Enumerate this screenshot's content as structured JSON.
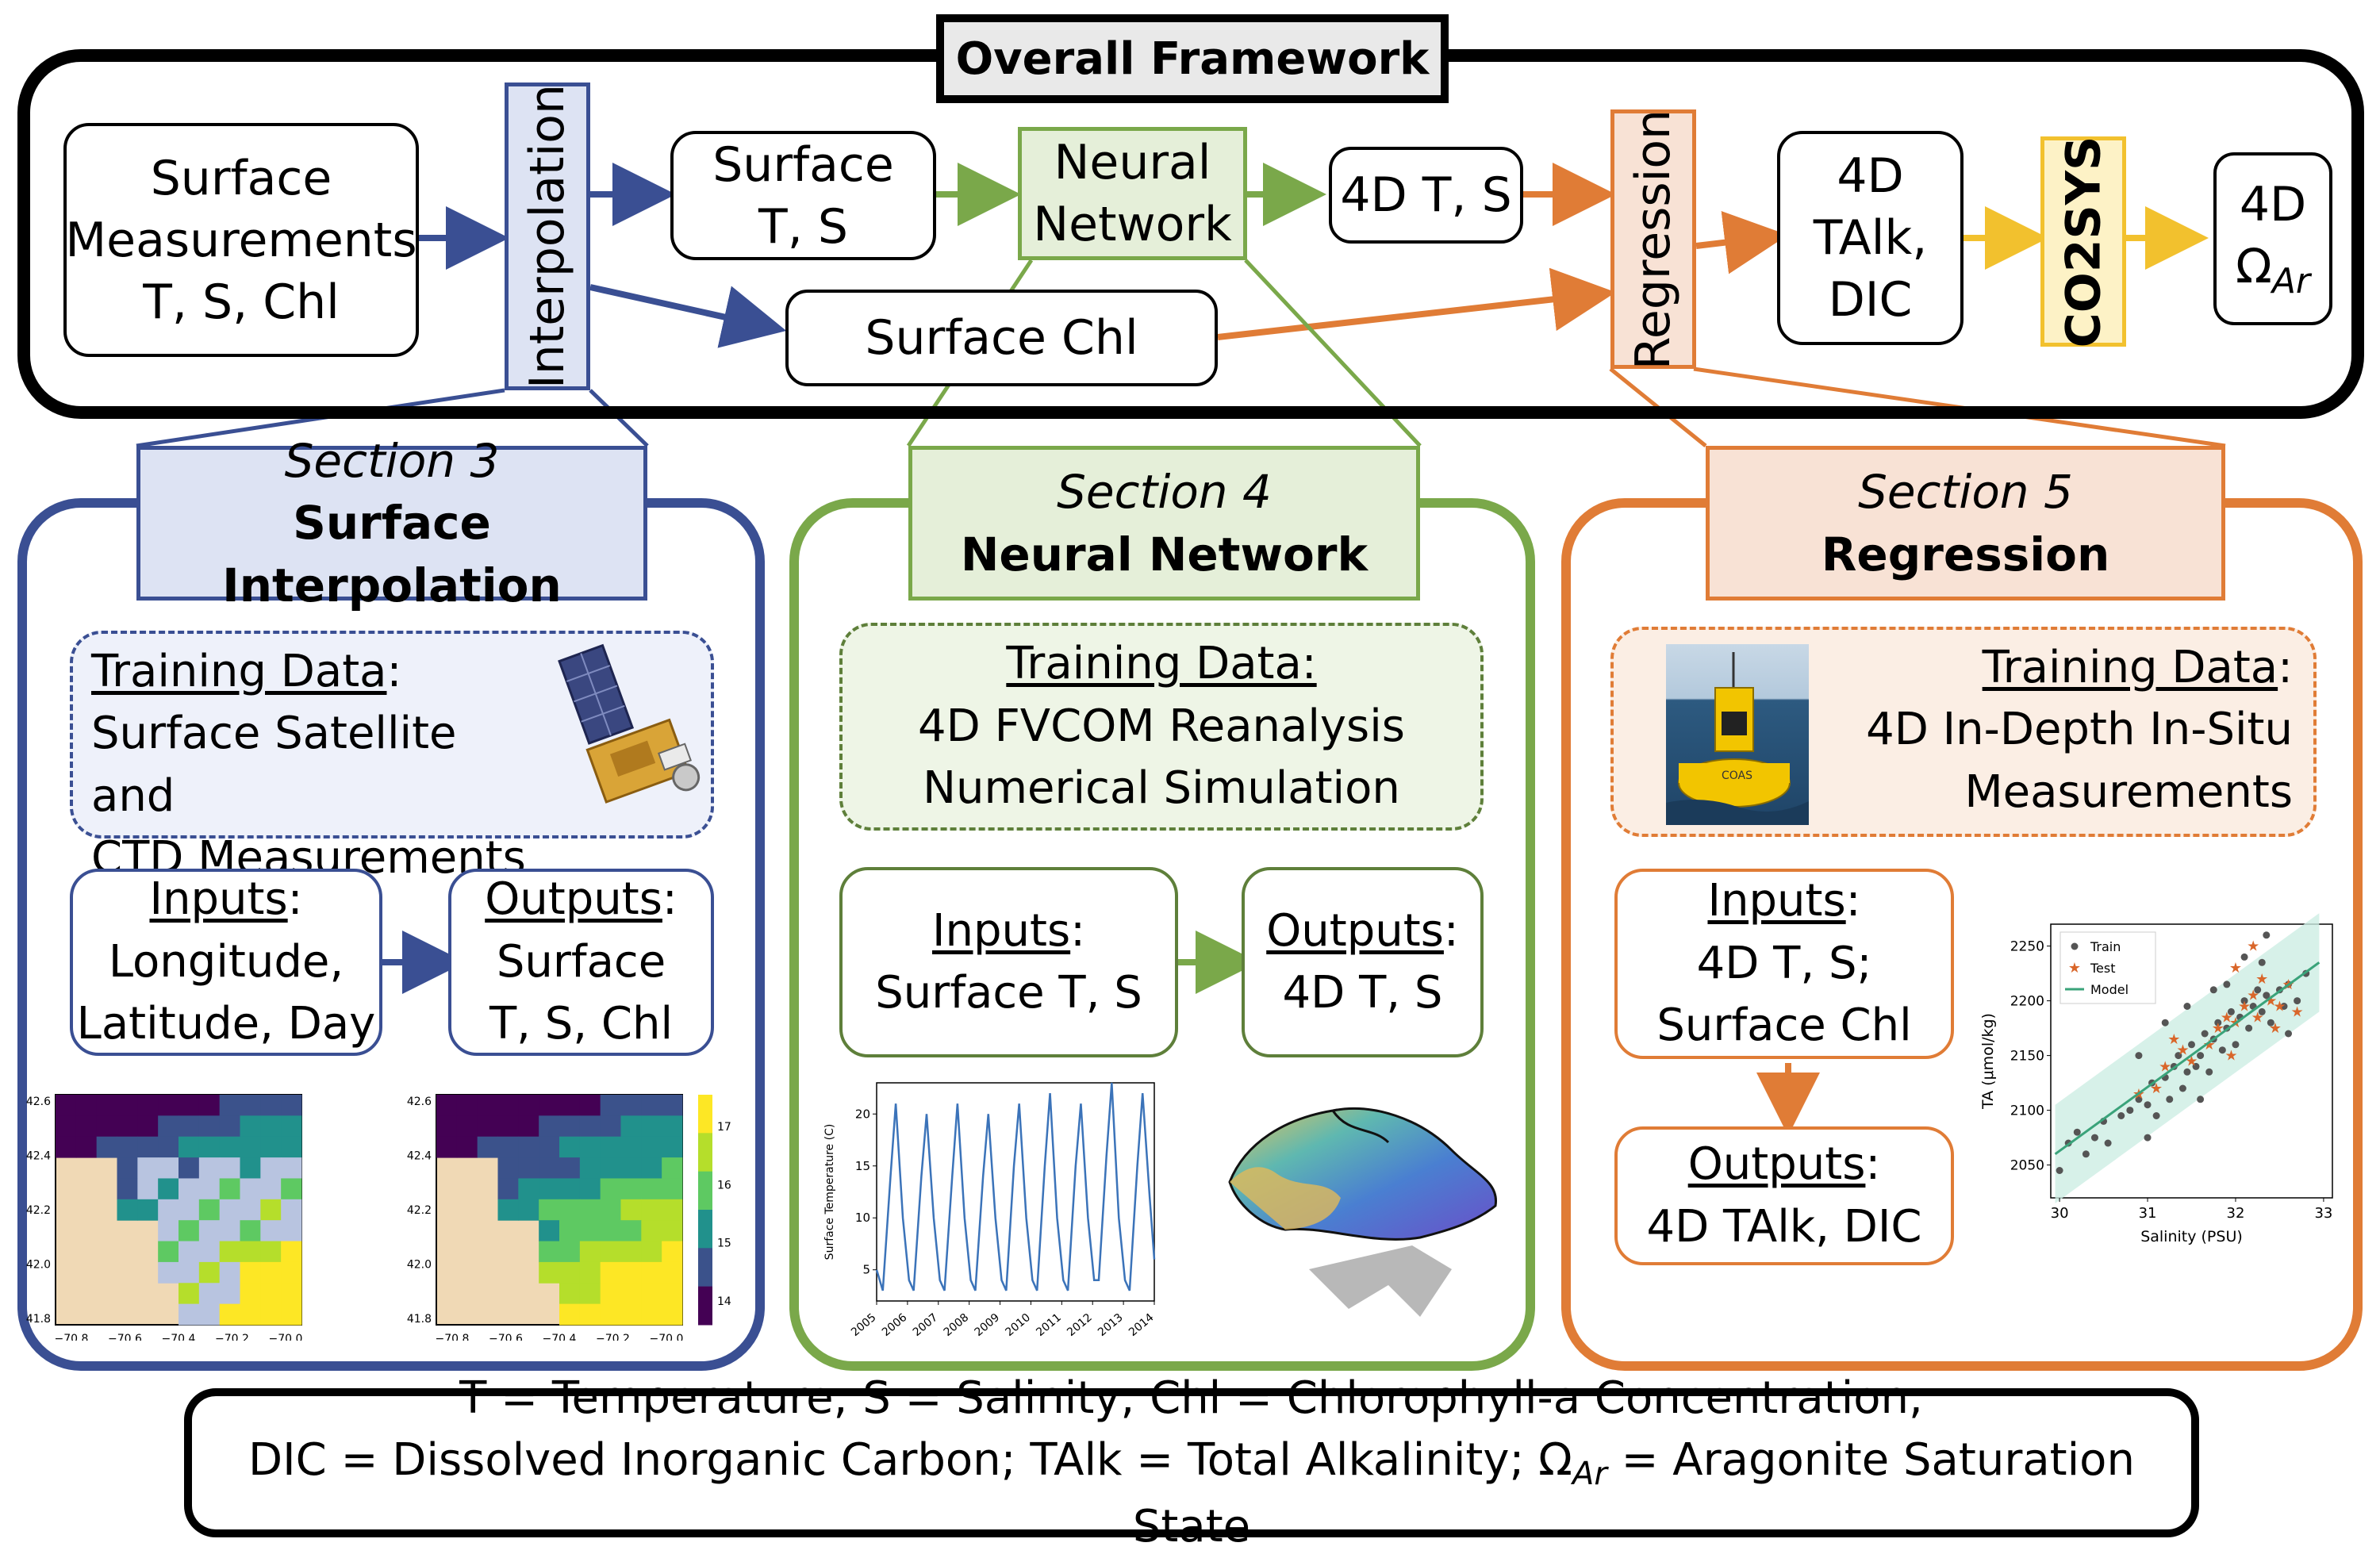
{
  "colors": {
    "black": "#000000",
    "blue": "#3a4f93",
    "blue_fill": "#dde3f3",
    "green": "#7aa84a",
    "green_fill": "#e5efd9",
    "orange": "#e07c36",
    "orange_fill": "#f8e2d5",
    "yellow": "#f2c12e",
    "yellow_fill": "#fdf2c6"
  },
  "overall": {
    "title": "Overall Framework",
    "surface_measurements": [
      "Surface",
      "Measurements",
      "T, S, Chl"
    ],
    "interpolation": "Interpolation",
    "surface_ts": [
      "Surface",
      "T, S"
    ],
    "surface_chl": "Surface Chl",
    "neural_network": [
      "Neural",
      "Network"
    ],
    "ts_4d": "4D T, S",
    "regression": "Regression",
    "talk_dic": [
      "4D",
      "TAlk,",
      "DIC"
    ],
    "co2sys": "CO2SYS",
    "omega": [
      "4D",
      "Ω",
      "Ar"
    ]
  },
  "section3": {
    "section": "Section 3",
    "title": "Surface Interpolation",
    "training_label": "Training Data",
    "training_colon": ":",
    "training_lines": [
      "Surface Satellite and",
      "CTD Measurements"
    ],
    "inputs_label": "Inputs",
    "inputs_lines": [
      "Longitude,",
      "Latitude, Day"
    ],
    "outputs_label": "Outputs",
    "outputs_lines": [
      "Surface",
      "T, S, Chl"
    ],
    "map": {
      "y_ticks": [
        "42.6",
        "42.4",
        "42.2",
        "42.0",
        "41.8"
      ],
      "x_ticks": [
        "−70.8",
        "−70.6",
        "−70.4",
        "−70.2",
        "−70.0"
      ],
      "colorbar_ticks": [
        "17",
        "16",
        "15",
        "14"
      ]
    }
  },
  "section4": {
    "section": "Section 4",
    "title": "Neural Network",
    "training_label": "Training Data:",
    "training_lines": [
      "4D FVCOM Reanalysis",
      "Numerical Simulation"
    ],
    "inputs_label": "Inputs",
    "inputs_colon": ":",
    "inputs_lines": [
      "Surface T, S"
    ],
    "outputs_label": "Outputs",
    "outputs_colon": ":",
    "outputs_lines": [
      "4D T, S"
    ]
  },
  "section5": {
    "section": "Section 5",
    "title": "Regression",
    "training_label": "Training Data",
    "training_colon": ":",
    "training_lines": [
      "4D In-Depth In-Situ",
      "Measurements"
    ],
    "inputs_label": "Inputs",
    "inputs_lines": [
      "4D T, S;",
      "Surface Chl"
    ],
    "outputs_label": "Outputs",
    "outputs_lines": [
      "4D TAlk, DIC"
    ]
  },
  "buoy_label": "COAS",
  "legend": {
    "line1": "T = Temperature; S = Salinity; Chl = Chlorophyll-a Concentration;",
    "line2_pre": "DIC = Dissolved Inorganic Carbon; TAlk = Total Alkalinity; ",
    "omega": "Ω",
    "omega_sub": "Ar",
    "line2_post": " = Aragonite Saturation State"
  },
  "chart_data": [
    {
      "type": "line",
      "title": "",
      "xlabel": "",
      "ylabel": "Surface Temperature (C)",
      "x_ticks": [
        "2005",
        "2006",
        "2007",
        "2008",
        "2009",
        "2010",
        "2011",
        "2012",
        "2013",
        "2014"
      ],
      "y_ticks": [
        5,
        10,
        15,
        20
      ],
      "xlim": [
        2005,
        2014
      ],
      "ylim": [
        2,
        23
      ],
      "series": [
        {
          "values": [
            [
              2005.0,
              5
            ],
            [
              2005.2,
              3
            ],
            [
              2005.45,
              14
            ],
            [
              2005.62,
              21
            ],
            [
              2005.85,
              10
            ],
            [
              2006.05,
              4
            ],
            [
              2006.2,
              3
            ],
            [
              2006.45,
              14
            ],
            [
              2006.62,
              20
            ],
            [
              2006.85,
              10
            ],
            [
              2007.05,
              4
            ],
            [
              2007.2,
              3
            ],
            [
              2007.45,
              14
            ],
            [
              2007.62,
              21
            ],
            [
              2007.85,
              10
            ],
            [
              2008.05,
              4
            ],
            [
              2008.2,
              3
            ],
            [
              2008.45,
              14
            ],
            [
              2008.62,
              20
            ],
            [
              2008.85,
              10
            ],
            [
              2009.05,
              4
            ],
            [
              2009.2,
              3
            ],
            [
              2009.45,
              15
            ],
            [
              2009.62,
              21
            ],
            [
              2009.85,
              10
            ],
            [
              2010.05,
              4
            ],
            [
              2010.2,
              3
            ],
            [
              2010.45,
              15
            ],
            [
              2010.62,
              22
            ],
            [
              2010.85,
              10
            ],
            [
              2011.05,
              4
            ],
            [
              2011.2,
              3
            ],
            [
              2011.45,
              15
            ],
            [
              2011.62,
              21
            ],
            [
              2011.85,
              10
            ],
            [
              2012.05,
              4
            ],
            [
              2012.2,
              4
            ],
            [
              2012.45,
              16
            ],
            [
              2012.62,
              23
            ],
            [
              2012.85,
              10
            ],
            [
              2013.05,
              4
            ],
            [
              2013.2,
              3
            ],
            [
              2013.45,
              15
            ],
            [
              2013.62,
              22
            ],
            [
              2013.85,
              12
            ],
            [
              2014.0,
              6
            ]
          ]
        }
      ]
    },
    {
      "type": "scatter",
      "title": "",
      "xlabel": "Salinity (PSU)",
      "ylabel": "TA (μmol/kg)",
      "x_ticks": [
        30,
        31,
        32,
        33
      ],
      "y_ticks": [
        2050,
        2100,
        2150,
        2200,
        2250
      ],
      "xlim": [
        29.9,
        33.1
      ],
      "ylim": [
        2020,
        2270
      ],
      "legend": "top-left",
      "model": {
        "name": "Model",
        "x": [
          29.95,
          32.95
        ],
        "y": [
          2060,
          2235
        ],
        "band": 45
      },
      "series": [
        {
          "name": "Train",
          "points": [
            [
              30.0,
              2045
            ],
            [
              30.1,
              2070
            ],
            [
              30.2,
              2080
            ],
            [
              30.3,
              2060
            ],
            [
              30.4,
              2075
            ],
            [
              30.5,
              2090
            ],
            [
              30.55,
              2070
            ],
            [
              30.7,
              2095
            ],
            [
              30.8,
              2100
            ],
            [
              30.9,
              2110
            ],
            [
              31.0,
              2105
            ],
            [
              31.05,
              2125
            ],
            [
              31.1,
              2095
            ],
            [
              31.2,
              2130
            ],
            [
              31.25,
              2110
            ],
            [
              31.3,
              2140
            ],
            [
              31.35,
              2150
            ],
            [
              31.4,
              2120
            ],
            [
              31.45,
              2135
            ],
            [
              31.5,
              2160
            ],
            [
              31.55,
              2140
            ],
            [
              31.6,
              2150
            ],
            [
              31.65,
              2170
            ],
            [
              31.7,
              2135
            ],
            [
              31.75,
              2165
            ],
            [
              31.8,
              2180
            ],
            [
              31.85,
              2155
            ],
            [
              31.9,
              2175
            ],
            [
              31.95,
              2190
            ],
            [
              32.0,
              2160
            ],
            [
              32.05,
              2185
            ],
            [
              32.1,
              2200
            ],
            [
              32.15,
              2175
            ],
            [
              32.2,
              2195
            ],
            [
              32.25,
              2210
            ],
            [
              32.3,
              2190
            ],
            [
              32.35,
              2205
            ],
            [
              32.4,
              2180
            ],
            [
              32.5,
              2210
            ],
            [
              32.55,
              2195
            ],
            [
              32.6,
              2215
            ],
            [
              32.7,
              2200
            ],
            [
              32.8,
              2225
            ],
            [
              32.35,
              2260
            ],
            [
              31.2,
              2180
            ],
            [
              31.0,
              2075
            ],
            [
              32.1,
              2240
            ],
            [
              31.6,
              2110
            ],
            [
              32.6,
              2170
            ],
            [
              31.45,
              2195
            ],
            [
              31.9,
              2215
            ],
            [
              30.9,
              2150
            ],
            [
              32.3,
              2235
            ],
            [
              31.75,
              2210
            ]
          ]
        },
        {
          "name": "Test",
          "points": [
            [
              30.9,
              2115
            ],
            [
              31.2,
              2140
            ],
            [
              31.5,
              2145
            ],
            [
              31.7,
              2160
            ],
            [
              31.8,
              2175
            ],
            [
              31.9,
              2185
            ],
            [
              32.0,
              2180
            ],
            [
              32.1,
              2195
            ],
            [
              32.2,
              2205
            ],
            [
              32.25,
              2185
            ],
            [
              32.3,
              2220
            ],
            [
              32.4,
              2200
            ],
            [
              32.5,
              2195
            ],
            [
              32.6,
              2215
            ],
            [
              31.4,
              2155
            ],
            [
              32.0,
              2230
            ],
            [
              31.1,
              2120
            ],
            [
              32.45,
              2175
            ],
            [
              31.95,
              2150
            ],
            [
              32.2,
              2250
            ],
            [
              31.3,
              2165
            ],
            [
              32.7,
              2190
            ]
          ]
        }
      ]
    }
  ]
}
